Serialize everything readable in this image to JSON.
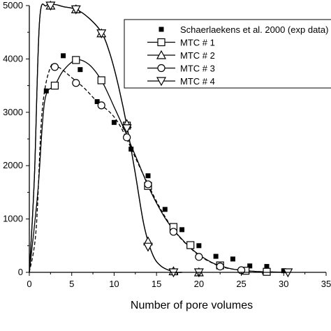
{
  "chart_data": {
    "type": "line",
    "title": "",
    "xlabel": "Number of pore volumes",
    "ylabel": "",
    "xlim": [
      0,
      35
    ],
    "ylim": [
      0,
      5000
    ],
    "x_ticks": [
      0,
      5,
      10,
      15,
      20,
      25,
      30,
      35
    ],
    "x_tick_labels": [
      "0",
      "5",
      "10",
      "15",
      "20",
      "25",
      "30",
      "35"
    ],
    "y_ticks": [
      0,
      1000,
      2000,
      3000,
      4000,
      5000
    ],
    "y_tick_labels": [
      "0",
      "1000",
      "2000",
      "3000",
      "4000",
      "5000"
    ],
    "grid": false,
    "legend_position": "top-right",
    "series": [
      {
        "name": "Schaerlaekens et al. 2000 (exp data)",
        "marker": "filled-square",
        "line": false,
        "points": [
          [
            2,
            3400
          ],
          [
            4,
            4060
          ],
          [
            6,
            3800
          ],
          [
            8,
            3200
          ],
          [
            10,
            2810
          ],
          [
            12,
            2310
          ],
          [
            14,
            1810
          ],
          [
            16,
            1180
          ],
          [
            18,
            800
          ],
          [
            20,
            500
          ],
          [
            22,
            300
          ],
          [
            24,
            250
          ],
          [
            26,
            120
          ],
          [
            28,
            110
          ],
          [
            30,
            30
          ]
        ]
      },
      {
        "name": "MTC # 1",
        "marker": "open-square",
        "line": true,
        "curve": [
          [
            0,
            0
          ],
          [
            1,
            1500
          ],
          [
            1.8,
            3200
          ],
          [
            3,
            3500
          ],
          [
            4,
            3780
          ],
          [
            5.5,
            3980
          ],
          [
            7,
            3900
          ],
          [
            8.5,
            3600
          ],
          [
            10,
            3100
          ],
          [
            11,
            2750
          ],
          [
            12,
            2380
          ],
          [
            13,
            2000
          ],
          [
            14,
            1620
          ],
          [
            15,
            1300
          ],
          [
            16,
            1020
          ],
          [
            17,
            800
          ],
          [
            18,
            620
          ],
          [
            19,
            460
          ],
          [
            20,
            330
          ],
          [
            21,
            230
          ],
          [
            22,
            150
          ],
          [
            23,
            100
          ],
          [
            24,
            60
          ],
          [
            25,
            40
          ],
          [
            26,
            25
          ],
          [
            27,
            15
          ],
          [
            28,
            8
          ],
          [
            30,
            3
          ]
        ],
        "markers": [
          [
            3,
            3500
          ],
          [
            5.5,
            3980
          ],
          [
            8.5,
            3600
          ],
          [
            11.5,
            2750
          ],
          [
            14,
            1620
          ],
          [
            17,
            850
          ],
          [
            19,
            510
          ],
          [
            22.5,
            130
          ],
          [
            25.5,
            30
          ],
          [
            28,
            10
          ]
        ]
      },
      {
        "name": "MTC # 2",
        "marker": "open-triangle-up",
        "line": true,
        "curve": [
          [
            0,
            0
          ],
          [
            0.6,
            1800
          ],
          [
            1.2,
            4700
          ],
          [
            2,
            5000
          ],
          [
            3,
            5020
          ],
          [
            4,
            4980
          ],
          [
            5.5,
            4930
          ],
          [
            7,
            4770
          ],
          [
            8.5,
            4500
          ],
          [
            9.5,
            4100
          ],
          [
            10.5,
            3500
          ],
          [
            11.5,
            2750
          ],
          [
            12.5,
            1850
          ],
          [
            13.5,
            900
          ],
          [
            14.5,
            350
          ],
          [
            15.5,
            120
          ],
          [
            17,
            10
          ],
          [
            18,
            0
          ]
        ],
        "markers": [
          [
            2.5,
            5000
          ],
          [
            5.5,
            4930
          ],
          [
            8.5,
            4480
          ],
          [
            11.5,
            2780
          ],
          [
            14,
            580
          ],
          [
            17,
            20
          ],
          [
            20,
            0
          ]
        ]
      },
      {
        "name": "MTC # 3",
        "marker": "open-circle",
        "line": true,
        "curve": [
          [
            0,
            0
          ],
          [
            0.8,
            800
          ],
          [
            1.5,
            3000
          ],
          [
            2.5,
            3850
          ],
          [
            3.5,
            3840
          ],
          [
            5,
            3650
          ],
          [
            6.5,
            3450
          ],
          [
            8,
            3200
          ],
          [
            9.5,
            3000
          ],
          [
            10.5,
            2800
          ],
          [
            11.5,
            2500
          ],
          [
            12.5,
            2150
          ],
          [
            14,
            1650
          ],
          [
            15.5,
            1180
          ],
          [
            17,
            800
          ],
          [
            18.5,
            530
          ],
          [
            20,
            320
          ],
          [
            21.5,
            180
          ],
          [
            23,
            90
          ],
          [
            25,
            40
          ],
          [
            27,
            15
          ],
          [
            29,
            5
          ],
          [
            31,
            0
          ]
        ],
        "markers": [
          [
            3,
            3850
          ],
          [
            5.5,
            3550
          ],
          [
            8.5,
            3130
          ],
          [
            11.5,
            2530
          ],
          [
            14,
            1650
          ],
          [
            17,
            760
          ],
          [
            20,
            290
          ],
          [
            22.5,
            110
          ],
          [
            25,
            40
          ]
        ]
      },
      {
        "name": "MTC # 4",
        "marker": "open-triangle-down",
        "line": true,
        "curve": [
          [
            0,
            0
          ],
          [
            0.6,
            1800
          ],
          [
            1.2,
            4700
          ],
          [
            2,
            5000
          ],
          [
            3,
            5020
          ],
          [
            4,
            4980
          ],
          [
            5.5,
            4930
          ],
          [
            7,
            4770
          ],
          [
            8.5,
            4500
          ],
          [
            9.5,
            4100
          ],
          [
            10.5,
            3500
          ],
          [
            11.5,
            2750
          ],
          [
            12.5,
            1850
          ],
          [
            13.5,
            900
          ],
          [
            14.5,
            350
          ],
          [
            15.5,
            120
          ],
          [
            17,
            10
          ],
          [
            18,
            0
          ]
        ],
        "markers": [
          [
            2.5,
            5000
          ],
          [
            5.5,
            4930
          ],
          [
            8.5,
            4480
          ],
          [
            11.5,
            2700
          ],
          [
            14,
            480
          ],
          [
            17,
            0
          ],
          [
            20,
            0
          ],
          [
            30.5,
            0
          ]
        ]
      }
    ]
  }
}
